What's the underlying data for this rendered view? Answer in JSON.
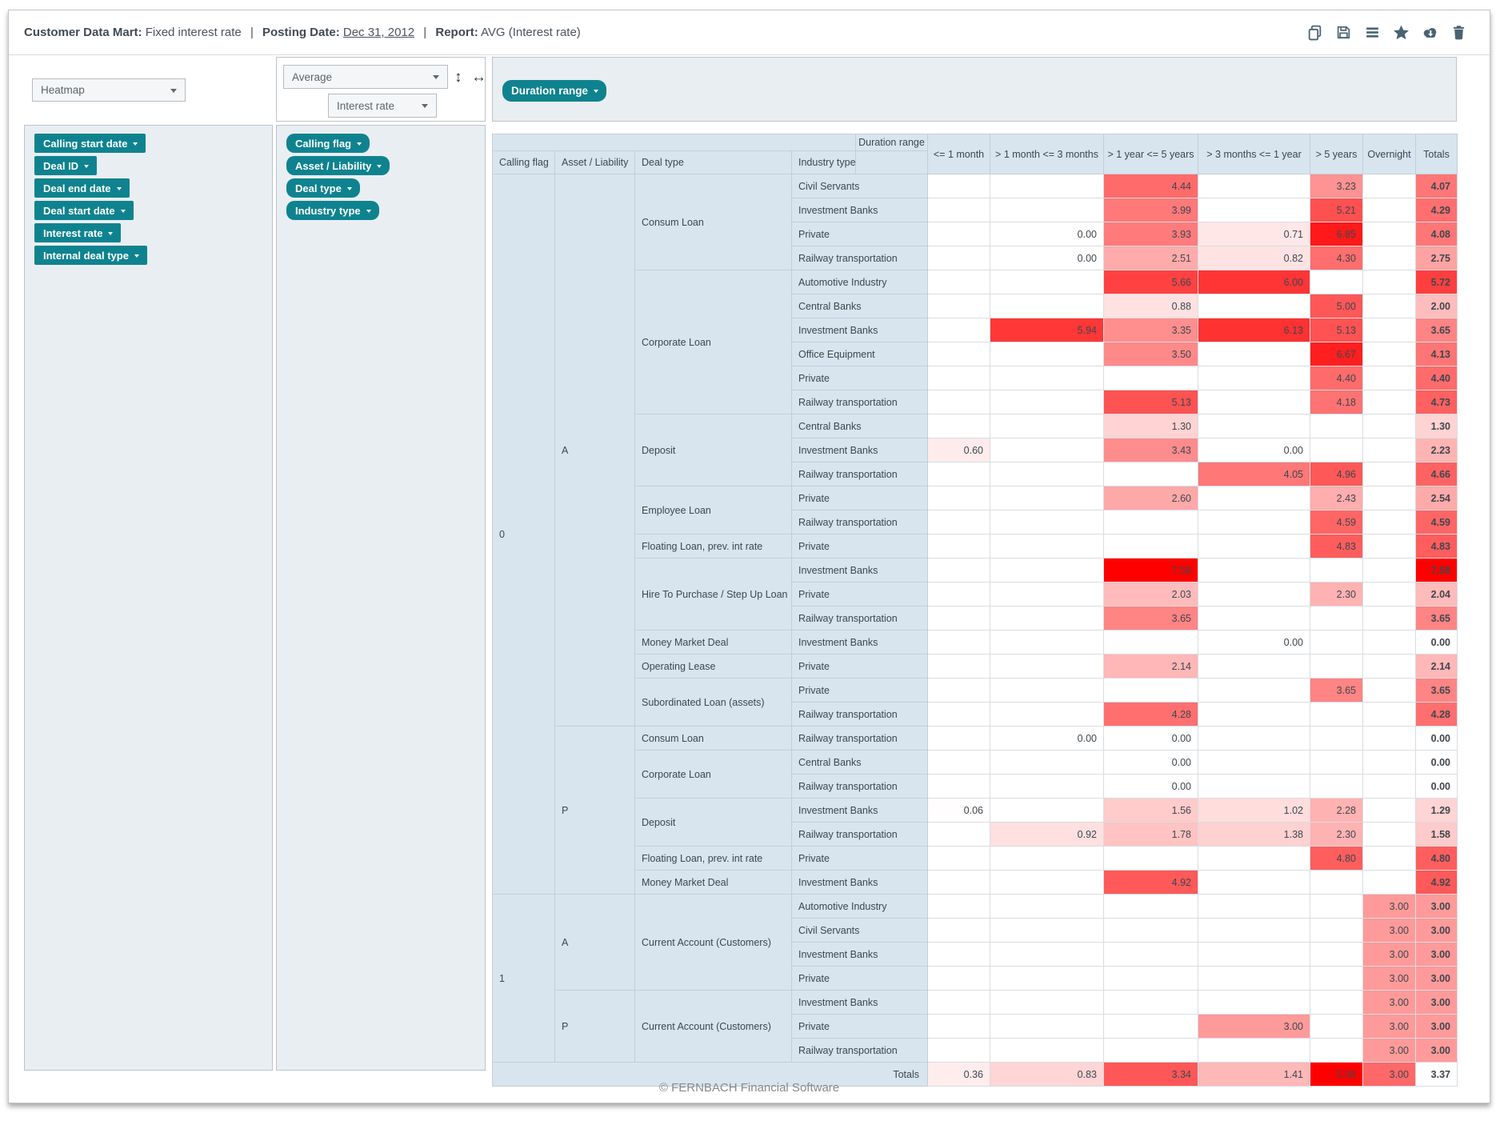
{
  "header": {
    "title": {
      "mart_label": "Customer Data Mart:",
      "mart_value": "Fixed interest rate",
      "separator": "|",
      "date_label": "Posting Date:",
      "date_value": "Dec 31, 2012",
      "report_label": "Report:",
      "report_value": "AVG (Interest rate)"
    },
    "toolbar_icons": [
      "duplicate-icon",
      "save-icon",
      "report-list-icon",
      "favorite-icon",
      "download-icon",
      "delete-icon"
    ]
  },
  "controls": {
    "view_select": {
      "value": "Heatmap"
    },
    "aggregation_select": {
      "value": "Average"
    },
    "measure_select": {
      "value": "Interest rate"
    },
    "swap_vertical_glyph": "↕",
    "swap_horizontal_glyph": "↔"
  },
  "available_fields": [
    "Calling start date",
    "Deal ID",
    "Deal end date",
    "Deal start date",
    "Interest rate",
    "Internal deal type"
  ],
  "row_fields": [
    "Calling flag",
    "Asset / Liability",
    "Deal type",
    "Industry type"
  ],
  "column_fields": [
    "Duration range"
  ],
  "pivot": {
    "corner_label": "Duration range",
    "row_headers": [
      "Calling flag",
      "Asset / Liability",
      "Deal type",
      "Industry type"
    ],
    "col_headers": [
      "<= 1 month",
      "> 1 month <= 3 months",
      "> 1 year <= 5 years",
      "> 3 months <= 1 year",
      "> 5 years",
      "Overnight",
      "Totals"
    ],
    "totals_label": "Totals",
    "heat_max": 7.58,
    "totals_heat_max": 5.08,
    "rows": [
      {
        "flag": "0",
        "al": "A",
        "deal": "Consum Loan",
        "industry": "Civil Servants",
        "values": [
          null,
          null,
          4.44,
          null,
          3.23,
          null,
          4.07
        ]
      },
      {
        "flag": "0",
        "al": "A",
        "deal": "Consum Loan",
        "industry": "Investment Banks",
        "values": [
          null,
          null,
          3.99,
          null,
          5.21,
          null,
          4.29
        ]
      },
      {
        "flag": "0",
        "al": "A",
        "deal": "Consum Loan",
        "industry": "Private",
        "values": [
          null,
          0.0,
          3.93,
          0.71,
          6.85,
          null,
          4.08
        ]
      },
      {
        "flag": "0",
        "al": "A",
        "deal": "Consum Loan",
        "industry": "Railway transportation",
        "values": [
          null,
          0.0,
          2.51,
          0.82,
          4.3,
          null,
          2.75
        ]
      },
      {
        "flag": "0",
        "al": "A",
        "deal": "Corporate Loan",
        "industry": "Automotive Industry",
        "values": [
          null,
          null,
          5.66,
          6.0,
          null,
          null,
          5.72
        ]
      },
      {
        "flag": "0",
        "al": "A",
        "deal": "Corporate Loan",
        "industry": "Central Banks",
        "values": [
          null,
          null,
          0.88,
          null,
          5.0,
          null,
          2.0
        ]
      },
      {
        "flag": "0",
        "al": "A",
        "deal": "Corporate Loan",
        "industry": "Investment Banks",
        "values": [
          null,
          5.94,
          3.35,
          6.13,
          5.13,
          null,
          3.65
        ]
      },
      {
        "flag": "0",
        "al": "A",
        "deal": "Corporate Loan",
        "industry": "Office Equipment",
        "values": [
          null,
          null,
          3.5,
          null,
          6.67,
          null,
          4.13
        ]
      },
      {
        "flag": "0",
        "al": "A",
        "deal": "Corporate Loan",
        "industry": "Private",
        "values": [
          null,
          null,
          null,
          null,
          4.4,
          null,
          4.4
        ]
      },
      {
        "flag": "0",
        "al": "A",
        "deal": "Corporate Loan",
        "industry": "Railway transportation",
        "values": [
          null,
          null,
          5.13,
          null,
          4.18,
          null,
          4.73
        ]
      },
      {
        "flag": "0",
        "al": "A",
        "deal": "Deposit",
        "industry": "Central Banks",
        "values": [
          null,
          null,
          1.3,
          null,
          null,
          null,
          1.3
        ]
      },
      {
        "flag": "0",
        "al": "A",
        "deal": "Deposit",
        "industry": "Investment Banks",
        "values": [
          0.6,
          null,
          3.43,
          0.0,
          null,
          null,
          2.23
        ]
      },
      {
        "flag": "0",
        "al": "A",
        "deal": "Deposit",
        "industry": "Railway transportation",
        "values": [
          null,
          null,
          null,
          4.05,
          4.96,
          null,
          4.66
        ]
      },
      {
        "flag": "0",
        "al": "A",
        "deal": "Employee Loan",
        "industry": "Private",
        "values": [
          null,
          null,
          2.6,
          null,
          2.43,
          null,
          2.54
        ]
      },
      {
        "flag": "0",
        "al": "A",
        "deal": "Employee Loan",
        "industry": "Railway transportation",
        "values": [
          null,
          null,
          null,
          null,
          4.59,
          null,
          4.59
        ]
      },
      {
        "flag": "0",
        "al": "A",
        "deal": "Floating Loan, prev. int rate",
        "industry": "Private",
        "values": [
          null,
          null,
          null,
          null,
          4.83,
          null,
          4.83
        ]
      },
      {
        "flag": "0",
        "al": "A",
        "deal": "Hire To Purchase / Step Up Loan",
        "industry": "Investment Banks",
        "values": [
          null,
          null,
          7.58,
          null,
          null,
          null,
          7.58
        ]
      },
      {
        "flag": "0",
        "al": "A",
        "deal": "Hire To Purchase / Step Up Loan",
        "industry": "Private",
        "values": [
          null,
          null,
          2.03,
          null,
          2.3,
          null,
          2.04
        ]
      },
      {
        "flag": "0",
        "al": "A",
        "deal": "Hire To Purchase / Step Up Loan",
        "industry": "Railway transportation",
        "values": [
          null,
          null,
          3.65,
          null,
          null,
          null,
          3.65
        ]
      },
      {
        "flag": "0",
        "al": "A",
        "deal": "Money Market Deal",
        "industry": "Investment Banks",
        "values": [
          null,
          null,
          null,
          0.0,
          null,
          null,
          0.0
        ]
      },
      {
        "flag": "0",
        "al": "A",
        "deal": "Operating Lease",
        "industry": "Private",
        "values": [
          null,
          null,
          2.14,
          null,
          null,
          null,
          2.14
        ]
      },
      {
        "flag": "0",
        "al": "A",
        "deal": "Subordinated Loan (assets)",
        "industry": "Private",
        "values": [
          null,
          null,
          null,
          null,
          3.65,
          null,
          3.65
        ]
      },
      {
        "flag": "0",
        "al": "A",
        "deal": "Subordinated Loan (assets)",
        "industry": "Railway transportation",
        "values": [
          null,
          null,
          4.28,
          null,
          null,
          null,
          4.28
        ]
      },
      {
        "flag": "0",
        "al": "P",
        "deal": "Consum Loan",
        "industry": "Railway transportation",
        "values": [
          null,
          0.0,
          0.0,
          null,
          null,
          null,
          0.0
        ]
      },
      {
        "flag": "0",
        "al": "P",
        "deal": "Corporate Loan",
        "industry": "Central Banks",
        "values": [
          null,
          null,
          0.0,
          null,
          null,
          null,
          0.0
        ]
      },
      {
        "flag": "0",
        "al": "P",
        "deal": "Corporate Loan",
        "industry": "Railway transportation",
        "values": [
          null,
          null,
          0.0,
          null,
          null,
          null,
          0.0
        ]
      },
      {
        "flag": "0",
        "al": "P",
        "deal": "Deposit",
        "industry": "Investment Banks",
        "values": [
          0.06,
          null,
          1.56,
          1.02,
          2.28,
          null,
          1.29
        ]
      },
      {
        "flag": "0",
        "al": "P",
        "deal": "Deposit",
        "industry": "Railway transportation",
        "values": [
          null,
          0.92,
          1.78,
          1.38,
          2.3,
          null,
          1.58
        ]
      },
      {
        "flag": "0",
        "al": "P",
        "deal": "Floating Loan, prev. int rate",
        "industry": "Private",
        "values": [
          null,
          null,
          null,
          null,
          4.8,
          null,
          4.8
        ]
      },
      {
        "flag": "0",
        "al": "P",
        "deal": "Money Market Deal",
        "industry": "Investment Banks",
        "values": [
          null,
          null,
          4.92,
          null,
          null,
          null,
          4.92
        ]
      },
      {
        "flag": "1",
        "al": "A",
        "deal": "Current Account (Customers)",
        "industry": "Automotive Industry",
        "values": [
          null,
          null,
          null,
          null,
          null,
          3.0,
          3.0
        ]
      },
      {
        "flag": "1",
        "al": "A",
        "deal": "Current Account (Customers)",
        "industry": "Civil Servants",
        "values": [
          null,
          null,
          null,
          null,
          null,
          3.0,
          3.0
        ]
      },
      {
        "flag": "1",
        "al": "A",
        "deal": "Current Account (Customers)",
        "industry": "Investment Banks",
        "values": [
          null,
          null,
          null,
          null,
          null,
          3.0,
          3.0
        ]
      },
      {
        "flag": "1",
        "al": "A",
        "deal": "Current Account (Customers)",
        "industry": "Private",
        "values": [
          null,
          null,
          null,
          null,
          null,
          3.0,
          3.0
        ]
      },
      {
        "flag": "1",
        "al": "P",
        "deal": "Current Account (Customers)",
        "industry": "Investment Banks",
        "values": [
          null,
          null,
          null,
          null,
          null,
          3.0,
          3.0
        ]
      },
      {
        "flag": "1",
        "al": "P",
        "deal": "Current Account (Customers)",
        "industry": "Private",
        "values": [
          null,
          null,
          null,
          3.0,
          null,
          3.0,
          3.0
        ]
      },
      {
        "flag": "1",
        "al": "P",
        "deal": "Current Account (Customers)",
        "industry": "Railway transportation",
        "values": [
          null,
          null,
          null,
          null,
          null,
          3.0,
          3.0
        ]
      }
    ],
    "totals": [
      0.36,
      0.83,
      3.34,
      1.41,
      5.08,
      3.0,
      3.37
    ]
  },
  "footer": {
    "copyright": "© FERNBACH Financial Software"
  },
  "colors": {
    "accent_teal": "#0e838f",
    "heat_max_red": "#ff0000",
    "panel_bg": "#e9eef3",
    "table_label_bg": "#d8e5ef"
  }
}
